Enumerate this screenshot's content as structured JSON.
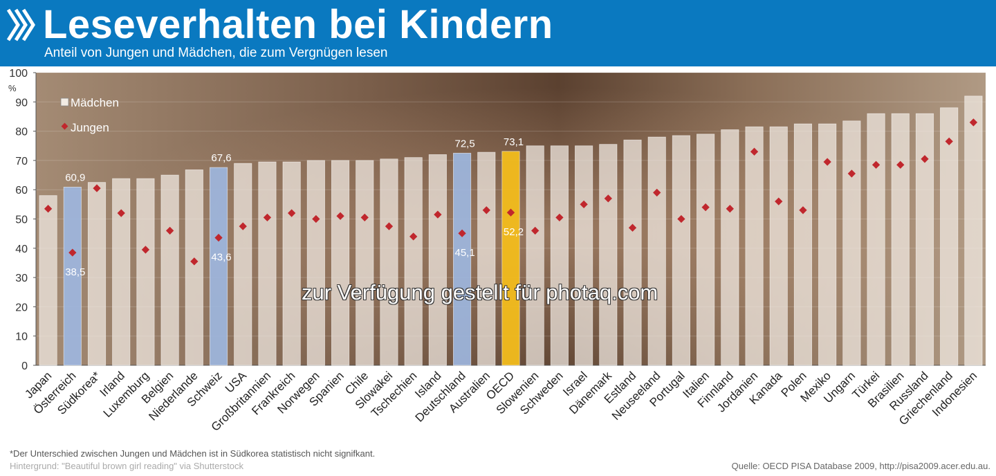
{
  "header": {
    "title": "Leseverhalten bei Kindern",
    "subtitle": "Anteil von Jungen und Mädchen, die zum Vergnügen lesen"
  },
  "colors": {
    "header_bg": "#0a79c0",
    "bar_default": "#f3ece4",
    "bar_highlight_blue": "#9db6de",
    "bar_highlight_oecd": "#f2bc1c",
    "marker": "#c0272d"
  },
  "chart_data": {
    "type": "bar",
    "title": "Leseverhalten bei Kindern",
    "ylabel": "%",
    "ylim": [
      0,
      100
    ],
    "yticks": [
      0,
      10,
      20,
      30,
      40,
      50,
      60,
      70,
      80,
      90,
      100
    ],
    "legend": {
      "position": "top-left",
      "girls": "Mädchen",
      "boys": "Jungen"
    },
    "categories": [
      "Japan",
      "Österreich",
      "Südkorea*",
      "Irland",
      "Luxemburg",
      "Belgien",
      "Niederlande",
      "Schweiz",
      "USA",
      "Großbritannien",
      "Frankreich",
      "Norwegen",
      "Spanien",
      "Chile",
      "Slowakei",
      "Tschechien",
      "Island",
      "Deutschland",
      "Australien",
      "OECD",
      "Slowenien",
      "Schweden",
      "Israel",
      "Dänemark",
      "Estland",
      "Neuseeland",
      "Portugal",
      "Italien",
      "Finnland",
      "Jordanien",
      "Kanada",
      "Polen",
      "Mexiko",
      "Ungarn",
      "Türkei",
      "Brasilien",
      "Russland",
      "Griechenland",
      "Indonesien"
    ],
    "series": [
      {
        "name": "Mädchen",
        "values": [
          58,
          60.9,
          62.5,
          63.8,
          63.8,
          65,
          66.8,
          67.6,
          69,
          69.5,
          69.5,
          70,
          70,
          70,
          70.5,
          71,
          72,
          72.5,
          72.8,
          73.1,
          75,
          75,
          75,
          75.5,
          77,
          78,
          78.5,
          79,
          80.5,
          81.5,
          81.5,
          82.5,
          82.5,
          83.5,
          86,
          86,
          86,
          88,
          92
        ]
      },
      {
        "name": "Jungen",
        "values": [
          53.5,
          38.5,
          60.5,
          52,
          39.5,
          46,
          35.5,
          43.6,
          47.5,
          50.5,
          52,
          50,
          51,
          50.5,
          47.5,
          44,
          51.5,
          45.1,
          53,
          52.2,
          46,
          50.5,
          55,
          57,
          47,
          59,
          50,
          54,
          53.5,
          73,
          56,
          53,
          69.5,
          65.5,
          68.5,
          68.5,
          70.5,
          76.5,
          83
        ]
      }
    ],
    "highlight": {
      "Österreich": "blue",
      "Schweiz": "blue",
      "Deutschland": "blue",
      "OECD": "oecd"
    },
    "labels": [
      {
        "category": "Österreich",
        "girls": "60,9",
        "boys": "38,5"
      },
      {
        "category": "Schweiz",
        "girls": "67,6",
        "boys": "43,6"
      },
      {
        "category": "Deutschland",
        "girls": "72,5",
        "boys": "45,1"
      },
      {
        "category": "OECD",
        "girls": "73,1",
        "boys": "52,2"
      }
    ]
  },
  "footer": {
    "footnote": "*Der Unterschied zwischen Jungen und Mädchen ist in Südkorea statistisch nicht  signifkant.",
    "background_credit": "Hintergrund: \"Beautiful brown girl reading\" via Shutterstock",
    "source": "Quelle: OECD PISA Database 2009, http://pisa2009.acer.edu.au."
  },
  "watermark": "zur Verfügung gestellt für photaq.com"
}
